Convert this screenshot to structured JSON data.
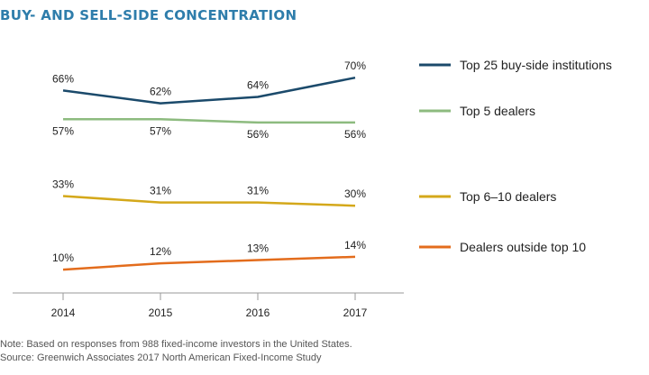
{
  "title": "BUY- AND SELL-SIDE CONCENTRATION",
  "note": "Note: Based on responses from 988 fixed-income investors in the United States.",
  "source": "Source: Greenwich Associates 2017 North American Fixed-Income Study",
  "chart_data": {
    "type": "line",
    "title": "BUY- AND SELL-SIDE CONCENTRATION",
    "x": [
      "2014",
      "2015",
      "2016",
      "2017"
    ],
    "xlabel": "",
    "ylabel": "",
    "grid": false,
    "legend_placement": "right",
    "series": [
      {
        "name": "Top 25 buy-side institutions",
        "values": [
          66,
          62,
          64,
          70
        ],
        "labels": [
          "66%",
          "62%",
          "64%",
          "70%"
        ],
        "color": "#1b4a6b"
      },
      {
        "name": "Top 5 dealers",
        "values": [
          57,
          57,
          56,
          56
        ],
        "labels": [
          "57%",
          "57%",
          "56%",
          "56%"
        ],
        "color": "#8dbb7f"
      },
      {
        "name": "Top 6–10 dealers",
        "values": [
          33,
          31,
          31,
          30
        ],
        "labels": [
          "33%",
          "31%",
          "31%",
          "30%"
        ],
        "color": "#d4a81a"
      },
      {
        "name": "Dealers outside top 10",
        "values": [
          10,
          12,
          13,
          14
        ],
        "labels": [
          "10%",
          "12%",
          "13%",
          "14%"
        ],
        "color": "#e36c1c"
      }
    ]
  }
}
